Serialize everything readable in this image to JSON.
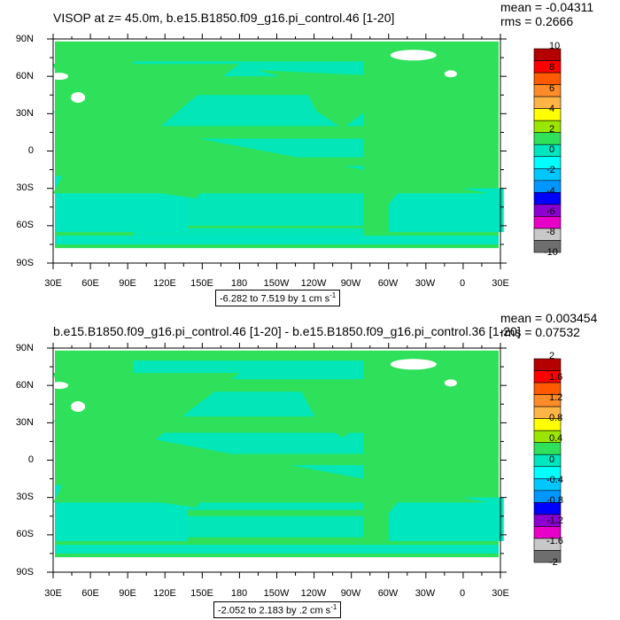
{
  "panels": [
    {
      "title": "VISOP at z=  45.0m, b.e15.B1850.f09_g16.pi_control.46 [1-20]",
      "mean_text": "mean = -0.04311",
      "rms_text": "rms = 0.2666",
      "range_text": "-6.282 to 7.519 by 1 cm s",
      "range_exponent": "-1",
      "colorbar_labels": [
        "10",
        "8",
        "6",
        "4",
        "2",
        "0",
        "-2",
        "-4",
        "-6",
        "-8",
        "-10"
      ]
    },
    {
      "title": "b.e15.B1850.f09_g16.pi_control.46 [1-20] - b.e15.B1850.f09_g16.pi_control.36 [1-20]",
      "mean_text": "mean = 0.003454",
      "rms_text": "rms = 0.07532",
      "range_text": "-2.052 to 2.183 by .2 cm s",
      "range_exponent": "-1",
      "colorbar_labels": [
        "2",
        "1.6",
        "1.2",
        "0.8",
        "0.4",
        "0",
        "-0.4",
        "-0.8",
        "-1.2",
        "-1.6",
        "-2"
      ]
    }
  ],
  "axes": {
    "x_ticks": [
      "30E",
      "60E",
      "90E",
      "120E",
      "150E",
      "180",
      "150W",
      "120W",
      "90W",
      "60W",
      "30W",
      "0",
      "30E"
    ],
    "y_ticks": [
      "90N",
      "60N",
      "30N",
      "0",
      "30S",
      "60S",
      "90S"
    ]
  },
  "colors": {
    "colorbar": [
      "#b40000",
      "#ff0000",
      "#ff5a00",
      "#ff8c28",
      "#ffb446",
      "#ffff00",
      "#9be600",
      "#2fe15a",
      "#00e6be",
      "#00ffff",
      "#00c8ff",
      "#0096ff",
      "#0000ff",
      "#8c00d2",
      "#e600c8",
      "#c8c8c8",
      "#6e6e6e"
    ],
    "ocean_green": "#2fe15a",
    "ocean_cyan": "#00e6be",
    "land": "#2fe15a",
    "missing": "#ffffff"
  },
  "chart_data": [
    {
      "type": "heatmap",
      "title": "VISOP at z=  45.0m, b.e15.B1850.f09_g16.pi_control.46 [1-20]",
      "x_ticks": [
        "30E",
        "60E",
        "90E",
        "120E",
        "150E",
        "180",
        "150W",
        "120W",
        "90W",
        "60W",
        "30W",
        "0",
        "30E"
      ],
      "y_ticks": [
        "90N",
        "60N",
        "30N",
        "0",
        "30S",
        "60S",
        "90S"
      ],
      "xlim": [
        30,
        390
      ],
      "ylim": [
        -90,
        90
      ],
      "mean": -0.04311,
      "rms": 0.2666,
      "range": [
        -6.282,
        7.519
      ],
      "contour_interval": 1,
      "units": "cm s-1",
      "colorbar_levels": [
        10,
        8,
        6,
        4,
        2,
        0,
        -2,
        -4,
        -6,
        -8,
        -10
      ]
    },
    {
      "type": "heatmap",
      "title": "b.e15.B1850.f09_g16.pi_control.46 [1-20] - b.e15.B1850.f09_g16.pi_control.36 [1-20]",
      "x_ticks": [
        "30E",
        "60E",
        "90E",
        "120E",
        "150E",
        "180",
        "150W",
        "120W",
        "90W",
        "60W",
        "30W",
        "0",
        "30E"
      ],
      "y_ticks": [
        "90N",
        "60N",
        "30N",
        "0",
        "30S",
        "60S",
        "90S"
      ],
      "xlim": [
        30,
        390
      ],
      "ylim": [
        -90,
        90
      ],
      "mean": 0.003454,
      "rms": 0.07532,
      "range": [
        -2.052,
        2.183
      ],
      "contour_interval": 0.2,
      "units": "cm s-1",
      "colorbar_levels": [
        2,
        1.6,
        1.2,
        0.8,
        0.4,
        0,
        -0.4,
        -0.8,
        -1.2,
        -1.6,
        -2
      ]
    }
  ]
}
